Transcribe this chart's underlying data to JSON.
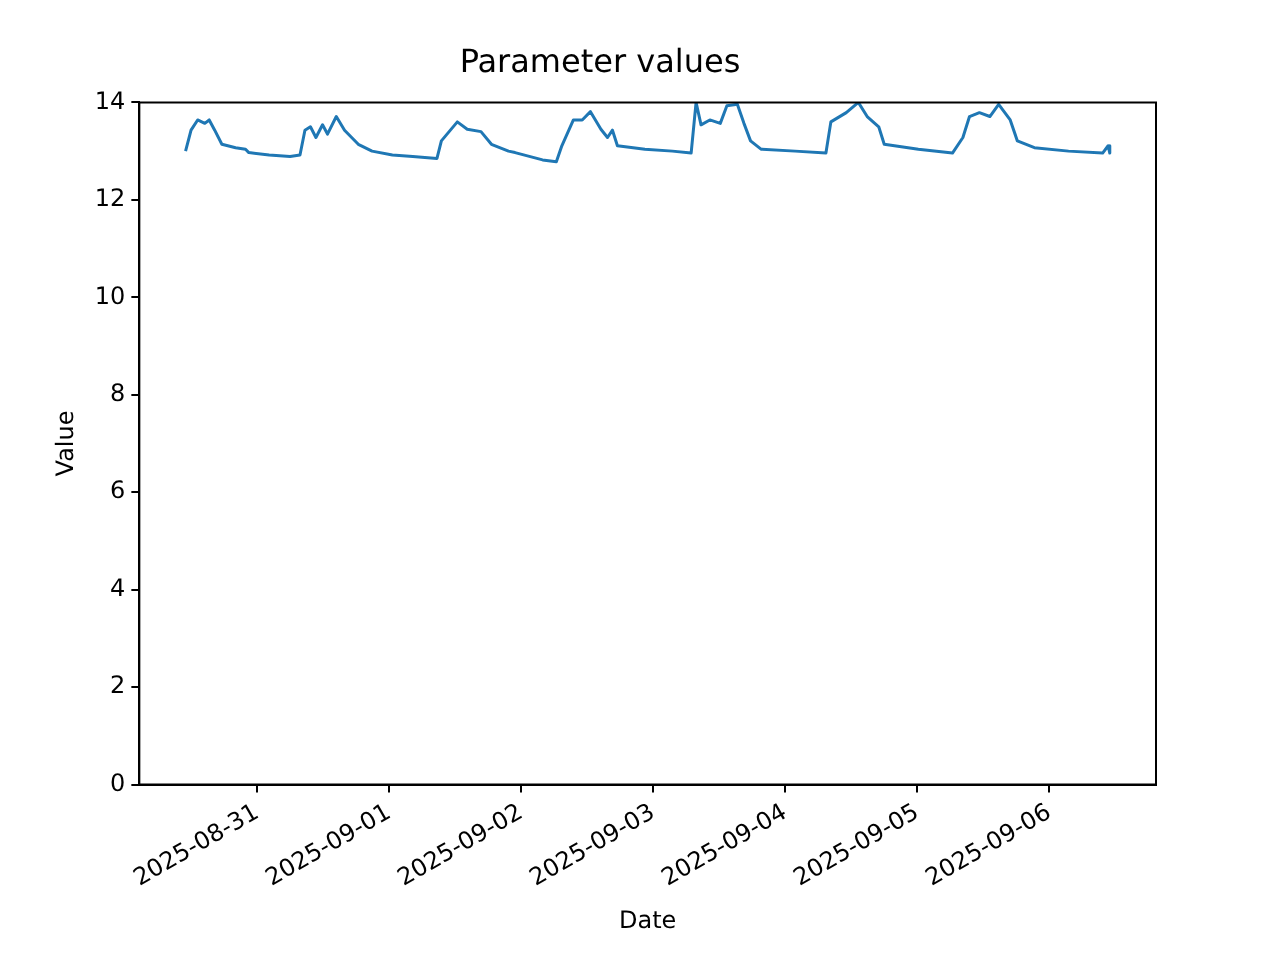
{
  "chart_data": {
    "type": "line",
    "title": "Parameter values",
    "xlabel": "Date",
    "ylabel": "Value",
    "xlim": [
      "2025-08-30T02:36",
      "2025-09-06T19:24"
    ],
    "xticks": [
      "2025-08-31",
      "2025-09-01",
      "2025-09-02",
      "2025-09-03",
      "2025-09-04",
      "2025-09-05",
      "2025-09-06"
    ],
    "ylim": [
      0,
      14
    ],
    "yticks": [
      0,
      2,
      4,
      6,
      8,
      10,
      12,
      14
    ],
    "grid": false,
    "legend": false,
    "marker": "none",
    "line_style": "solid",
    "x": [
      "2025-08-30T11:00",
      "2025-08-30T12:00",
      "2025-08-30T13:12",
      "2025-08-30T14:30",
      "2025-08-30T15:18",
      "2025-08-30T16:18",
      "2025-08-30T17:36",
      "2025-08-30T20:06",
      "2025-08-30T21:54",
      "2025-08-30T22:30",
      "2025-08-31T02:12",
      "2025-08-31T06:00",
      "2025-08-31T07:48",
      "2025-08-31T08:42",
      "2025-08-31T09:42",
      "2025-08-31T10:42",
      "2025-08-31T11:54",
      "2025-08-31T12:48",
      "2025-08-31T14:24",
      "2025-08-31T15:54",
      "2025-08-31T18:24",
      "2025-08-31T20:54",
      "2025-09-01T00:36",
      "2025-09-01T04:18",
      "2025-09-01T08:42",
      "2025-09-01T09:30",
      "2025-09-01T12:24",
      "2025-09-01T14:12",
      "2025-09-01T16:42",
      "2025-09-01T18:36",
      "2025-09-01T21:42",
      "2025-09-01T22:54",
      "2025-09-02T03:54",
      "2025-09-02T06:24",
      "2025-09-02T07:24",
      "2025-09-02T09:30",
      "2025-09-02T11:06",
      "2025-09-02T12:36",
      "2025-09-02T14:30",
      "2025-09-02T15:42",
      "2025-09-02T16:36",
      "2025-09-02T17:30",
      "2025-09-02T22:30",
      "2025-09-03T03:30",
      "2025-09-03T06:54",
      "2025-09-03T07:48",
      "2025-09-03T08:42",
      "2025-09-03T10:18",
      "2025-09-03T12:12",
      "2025-09-03T13:24",
      "2025-09-03T15:18",
      "2025-09-03T16:30",
      "2025-09-03T17:42",
      "2025-09-03T19:36",
      "2025-09-04T01:48",
      "2025-09-04T07:24",
      "2025-09-04T08:18",
      "2025-09-04T11:06",
      "2025-09-04T13:18",
      "2025-09-04T14:54",
      "2025-09-04T17:00",
      "2025-09-04T18:00",
      "2025-09-05T00:12",
      "2025-09-05T06:24",
      "2025-09-05T08:18",
      "2025-09-05T09:30",
      "2025-09-05T11:18",
      "2025-09-05T13:12",
      "2025-09-05T14:48",
      "2025-09-05T16:54",
      "2025-09-05T18:12",
      "2025-09-05T21:18",
      "2025-09-06T03:30",
      "2025-09-06T09:42",
      "2025-09-06T10:42",
      "2025-09-06T11:00"
    ],
    "series": [
      {
        "color": "#1f77b4",
        "values": [
          13.0,
          13.43,
          13.64,
          13.57,
          13.64,
          13.43,
          13.14,
          13.07,
          13.04,
          12.97,
          12.92,
          12.89,
          12.92,
          13.43,
          13.5,
          13.28,
          13.54,
          13.35,
          13.71,
          13.43,
          13.14,
          13.0,
          12.92,
          12.89,
          12.85,
          13.21,
          13.6,
          13.45,
          13.4,
          13.14,
          13.0,
          12.97,
          12.82,
          12.78,
          13.11,
          13.64,
          13.64,
          13.81,
          13.45,
          13.28,
          13.43,
          13.11,
          13.04,
          13.0,
          12.96,
          14.0,
          13.54,
          13.64,
          13.57,
          13.93,
          13.96,
          13.57,
          13.21,
          13.04,
          13.0,
          12.96,
          13.6,
          13.79,
          14.0,
          13.71,
          13.5,
          13.14,
          13.04,
          12.96,
          13.28,
          13.71,
          13.79,
          13.71,
          13.96,
          13.64,
          13.21,
          13.07,
          13.0,
          12.96,
          13.11,
          12.96
        ]
      }
    ]
  }
}
